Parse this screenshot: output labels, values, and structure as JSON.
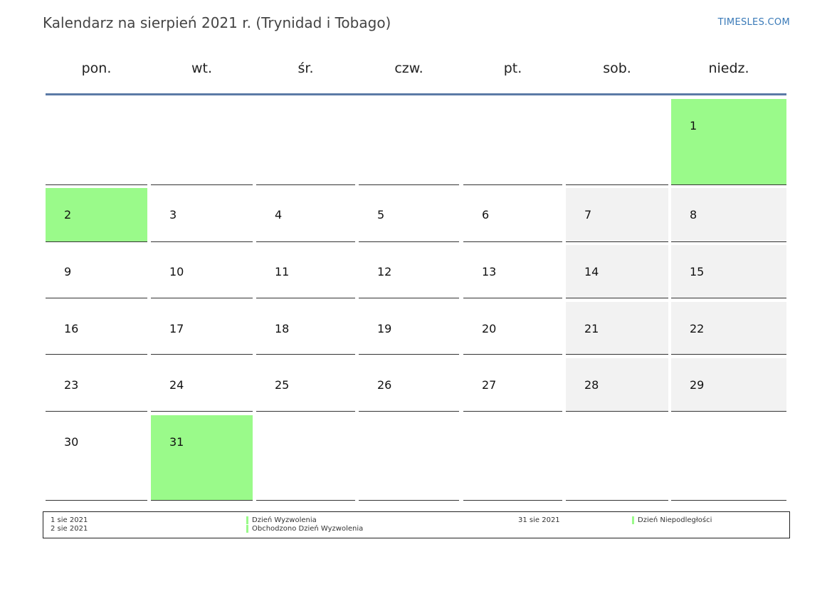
{
  "header": {
    "title": "Kalendarz na sierpień 2021 r. (Trynidad i Tobago)",
    "brand": "TIMESLES.COM"
  },
  "weekdays": [
    "pon.",
    "wt.",
    "śr.",
    "czw.",
    "pt.",
    "sob.",
    "niedz."
  ],
  "colors": {
    "holiday": "#9afa8a",
    "weekend": "#f2f2f2",
    "header_rule": "#5b7aa6",
    "brand": "#3a7ab8"
  },
  "weeks": [
    [
      null,
      null,
      null,
      null,
      null,
      null,
      {
        "day": "1",
        "type": "holiday"
      }
    ],
    [
      {
        "day": "2",
        "type": "holiday"
      },
      {
        "day": "3",
        "type": "normal"
      },
      {
        "day": "4",
        "type": "normal"
      },
      {
        "day": "5",
        "type": "normal"
      },
      {
        "day": "6",
        "type": "normal"
      },
      {
        "day": "7",
        "type": "weekend"
      },
      {
        "day": "8",
        "type": "weekend"
      }
    ],
    [
      {
        "day": "9",
        "type": "normal"
      },
      {
        "day": "10",
        "type": "normal"
      },
      {
        "day": "11",
        "type": "normal"
      },
      {
        "day": "12",
        "type": "normal"
      },
      {
        "day": "13",
        "type": "normal"
      },
      {
        "day": "14",
        "type": "weekend"
      },
      {
        "day": "15",
        "type": "weekend"
      }
    ],
    [
      {
        "day": "16",
        "type": "normal"
      },
      {
        "day": "17",
        "type": "normal"
      },
      {
        "day": "18",
        "type": "normal"
      },
      {
        "day": "19",
        "type": "normal"
      },
      {
        "day": "20",
        "type": "normal"
      },
      {
        "day": "21",
        "type": "weekend"
      },
      {
        "day": "22",
        "type": "weekend"
      }
    ],
    [
      {
        "day": "23",
        "type": "normal"
      },
      {
        "day": "24",
        "type": "normal"
      },
      {
        "day": "25",
        "type": "normal"
      },
      {
        "day": "26",
        "type": "normal"
      },
      {
        "day": "27",
        "type": "normal"
      },
      {
        "day": "28",
        "type": "weekend"
      },
      {
        "day": "29",
        "type": "weekend"
      }
    ],
    [
      {
        "day": "30",
        "type": "normal"
      },
      {
        "day": "31",
        "type": "holiday"
      },
      null,
      null,
      null,
      null,
      null
    ]
  ],
  "legend": {
    "group1": {
      "dates": [
        "1 sie 2021",
        "2 sie 2021"
      ],
      "names": [
        "Dzień Wyzwolenia",
        "Obchodzono Dzień Wyzwolenia"
      ]
    },
    "group2": {
      "dates": [
        "31 sie 2021"
      ],
      "names": [
        "Dzień Niepodległości"
      ]
    }
  }
}
